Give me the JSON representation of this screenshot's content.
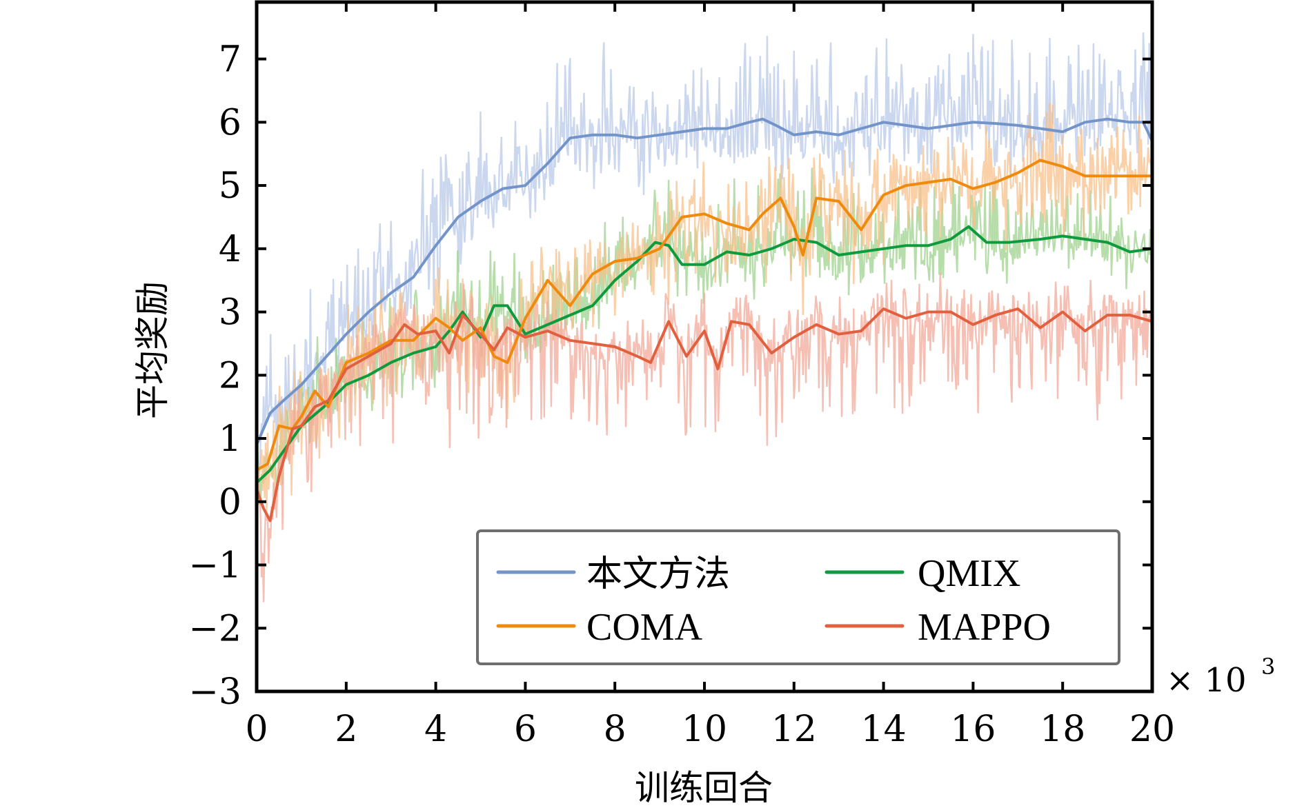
{
  "chart_data": {
    "type": "line",
    "title": "",
    "xlabel": "训练回合",
    "ylabel": "平均奖励",
    "x_multiplier_label": "× 10",
    "x_multiplier_exp": "3",
    "xlim": [
      0,
      20
    ],
    "ylim": [
      -3,
      7.9
    ],
    "xticks": [
      0,
      2,
      4,
      6,
      8,
      10,
      12,
      14,
      16,
      18,
      20
    ],
    "xtick_labels": [
      "0",
      "2",
      "4",
      "6",
      "8",
      "10",
      "12",
      "14",
      "16",
      "18",
      "20"
    ],
    "yticks": [
      -3,
      -2,
      -1,
      0,
      1,
      2,
      3,
      4,
      5,
      6,
      7
    ],
    "ytick_labels": [
      "−3",
      "−2",
      "−1",
      "0",
      "1",
      "2",
      "3",
      "4",
      "5",
      "6",
      "7"
    ],
    "grid": false,
    "legend": {
      "placement": "bottom-right",
      "columns": 2,
      "order": [
        "本文方法",
        "QMIX",
        "COMA",
        "MAPPO"
      ]
    },
    "series": [
      {
        "name": "本文方法",
        "color": "#7394c9",
        "shade_color": "#b9c9e8",
        "noise": {
          "up": 1.3,
          "down": 0.7,
          "seed": 11
        },
        "x": [
          0,
          0.3,
          0.6,
          1,
          1.5,
          2,
          2.5,
          3,
          3.5,
          4,
          4.5,
          5,
          5.5,
          6,
          6.5,
          7,
          7.5,
          8,
          8.5,
          9,
          9.5,
          10,
          10.5,
          11,
          11.3,
          11.6,
          12,
          12.5,
          13,
          13.5,
          14,
          14.5,
          15,
          15.5,
          16,
          16.5,
          17,
          17.5,
          18,
          18.5,
          19,
          19.5,
          19.8,
          20
        ],
        "values": [
          0.9,
          1.4,
          1.6,
          1.85,
          2.25,
          2.65,
          3.0,
          3.3,
          3.55,
          4.05,
          4.5,
          4.75,
          4.95,
          5.0,
          5.35,
          5.75,
          5.8,
          5.8,
          5.75,
          5.8,
          5.85,
          5.9,
          5.9,
          6.0,
          6.05,
          5.95,
          5.8,
          5.85,
          5.8,
          5.9,
          6.0,
          5.95,
          5.9,
          5.95,
          6.0,
          5.98,
          5.95,
          5.9,
          5.85,
          6.0,
          6.05,
          6.0,
          6.0,
          5.7
        ]
      },
      {
        "name": "QMIX",
        "color": "#0f9a3e",
        "shade_color": "#9fd28f",
        "noise": {
          "up": 1.0,
          "down": 0.5,
          "seed": 23
        },
        "x": [
          0,
          0.3,
          0.6,
          1,
          1.5,
          2,
          2.5,
          3,
          3.5,
          4,
          4.3,
          4.6,
          5,
          5.3,
          5.6,
          6,
          6.5,
          7,
          7.5,
          8,
          8.5,
          8.9,
          9.2,
          9.5,
          10,
          10.5,
          11,
          11.5,
          12,
          12.5,
          13,
          13.5,
          14,
          14.5,
          15,
          15.5,
          15.9,
          16.3,
          16.8,
          17.5,
          18,
          18.5,
          19,
          19.5,
          20
        ],
        "values": [
          0.3,
          0.5,
          0.8,
          1.2,
          1.5,
          1.85,
          2.0,
          2.2,
          2.35,
          2.45,
          2.7,
          3.0,
          2.6,
          3.1,
          3.1,
          2.65,
          2.8,
          2.95,
          3.1,
          3.5,
          3.8,
          4.1,
          4.05,
          3.75,
          3.75,
          3.95,
          3.9,
          4.0,
          4.15,
          4.1,
          3.9,
          3.95,
          4.0,
          4.05,
          4.05,
          4.15,
          4.35,
          4.1,
          4.1,
          4.15,
          4.2,
          4.15,
          4.1,
          3.95,
          4.0
        ]
      },
      {
        "name": "COMA",
        "color": "#ee8a0e",
        "shade_color": "#f7c08a",
        "noise": {
          "up": 0.8,
          "down": 1.0,
          "seed": 37
        },
        "x": [
          0,
          0.25,
          0.5,
          0.8,
          1,
          1.3,
          1.6,
          2,
          2.5,
          3,
          3.5,
          4,
          4.3,
          4.6,
          5,
          5.3,
          5.6,
          6,
          6.5,
          7,
          7.5,
          8,
          8.5,
          9,
          9.5,
          10,
          10.5,
          11,
          11.3,
          11.7,
          12,
          12.2,
          12.5,
          13,
          13.5,
          14,
          14.5,
          15,
          15.5,
          16,
          16.5,
          17,
          17.5,
          18,
          18.5,
          19,
          19.5,
          20
        ],
        "values": [
          0.5,
          0.6,
          1.2,
          1.15,
          1.35,
          1.75,
          1.5,
          2.2,
          2.35,
          2.55,
          2.55,
          2.9,
          2.75,
          2.55,
          2.75,
          2.3,
          2.2,
          2.9,
          3.5,
          3.1,
          3.6,
          3.8,
          3.85,
          4.0,
          4.5,
          4.55,
          4.4,
          4.3,
          4.55,
          4.8,
          4.35,
          3.9,
          4.8,
          4.75,
          4.3,
          4.85,
          5.0,
          5.05,
          5.1,
          4.95,
          5.05,
          5.2,
          5.4,
          5.3,
          5.15,
          5.15,
          5.15,
          5.15
        ]
      },
      {
        "name": "MAPPO",
        "color": "#e0603f",
        "shade_color": "#f2aa9a",
        "noise": {
          "up": 0.5,
          "down": 1.5,
          "seed": 53
        },
        "x": [
          0,
          0.15,
          0.3,
          0.5,
          0.8,
          1,
          1.3,
          1.6,
          2,
          2.5,
          3,
          3.3,
          3.6,
          4,
          4.3,
          4.6,
          5,
          5.3,
          5.6,
          6,
          6.5,
          7,
          7.5,
          8,
          8.5,
          8.8,
          9.2,
          9.6,
          10,
          10.3,
          10.6,
          11,
          11.5,
          12,
          12.5,
          13,
          13.5,
          14,
          14.5,
          15,
          15.5,
          16,
          16.5,
          17,
          17.5,
          18,
          18.5,
          19,
          19.5,
          20
        ],
        "values": [
          0.2,
          -0.1,
          -0.3,
          0.4,
          1.15,
          1.2,
          1.5,
          1.6,
          2.1,
          2.3,
          2.5,
          2.8,
          2.65,
          2.7,
          2.35,
          2.95,
          2.65,
          2.4,
          2.75,
          2.6,
          2.7,
          2.55,
          2.5,
          2.45,
          2.3,
          2.2,
          2.85,
          2.3,
          2.7,
          2.1,
          2.85,
          2.8,
          2.35,
          2.6,
          2.8,
          2.65,
          2.7,
          3.05,
          2.9,
          3.0,
          3.0,
          2.8,
          2.95,
          3.05,
          2.75,
          3.0,
          2.7,
          2.95,
          2.95,
          2.85
        ]
      }
    ]
  }
}
